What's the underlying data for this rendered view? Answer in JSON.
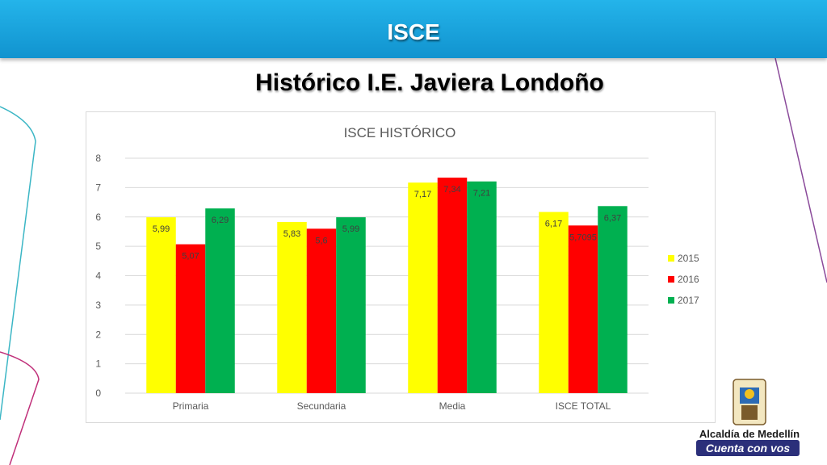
{
  "header": {
    "title": "ISCE"
  },
  "page": {
    "subtitle": "Histórico I.E. Javiera Londoño"
  },
  "logo": {
    "line1": "Alcaldía de Medellín",
    "line2": "Cuenta con vos",
    "icon": "coat-of-arms-icon"
  },
  "colors": {
    "banner": "#1ba7e1",
    "y2015": "#ffff00",
    "y2016": "#ff0000",
    "y2017": "#00b050"
  },
  "chart_data": {
    "type": "bar",
    "title": "ISCE HISTÓRICO",
    "categories": [
      "Primaria",
      "Secundaria",
      "Media",
      "ISCE TOTAL"
    ],
    "series": [
      {
        "name": "2015",
        "color": "#ffff00",
        "values": [
          5.99,
          5.83,
          7.17,
          6.17
        ],
        "labels": [
          "5,99",
          "5,83",
          "7,17",
          "6,17"
        ]
      },
      {
        "name": "2016",
        "color": "#ff0000",
        "values": [
          5.07,
          5.6,
          7.34,
          5.7095
        ],
        "labels": [
          "5,07",
          "5,6",
          "7,34",
          "5,7095"
        ]
      },
      {
        "name": "2017",
        "color": "#00b050",
        "values": [
          6.29,
          5.99,
          7.21,
          6.37
        ],
        "labels": [
          "6,29",
          "5,99",
          "7,21",
          "6,37"
        ]
      }
    ],
    "yticks": [
      "0",
      "1",
      "2",
      "3",
      "4",
      "5",
      "6",
      "7",
      "8"
    ],
    "ylim": [
      0,
      8
    ],
    "grid": true,
    "legend": "right"
  }
}
